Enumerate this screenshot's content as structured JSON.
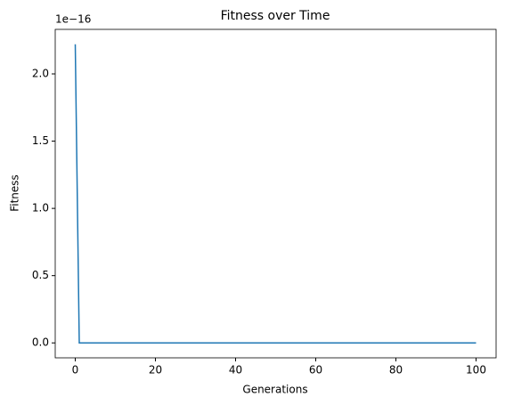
{
  "chart_data": {
    "type": "line",
    "title": "Fitness over Time",
    "xlabel": "Generations",
    "ylabel": "Fitness",
    "y_offset_label": "1e−16",
    "x": [
      0,
      1,
      2,
      3,
      4,
      5,
      6,
      7,
      8,
      9,
      10,
      11,
      12,
      13,
      14,
      15,
      16,
      17,
      18,
      19,
      20,
      21,
      22,
      23,
      24,
      25,
      26,
      27,
      28,
      29,
      30,
      31,
      32,
      33,
      34,
      35,
      36,
      37,
      38,
      39,
      40,
      41,
      42,
      43,
      44,
      45,
      46,
      47,
      48,
      49,
      50,
      51,
      52,
      53,
      54,
      55,
      56,
      57,
      58,
      59,
      60,
      61,
      62,
      63,
      64,
      65,
      66,
      67,
      68,
      69,
      70,
      71,
      72,
      73,
      74,
      75,
      76,
      77,
      78,
      79,
      80,
      81,
      82,
      83,
      84,
      85,
      86,
      87,
      88,
      89,
      90,
      91,
      92,
      93,
      94,
      95,
      96,
      97,
      98,
      99,
      100
    ],
    "values": [
      2.22,
      0,
      0,
      0,
      0,
      0,
      0,
      0,
      0,
      0,
      0,
      0,
      0,
      0,
      0,
      0,
      0,
      0,
      0,
      0,
      0,
      0,
      0,
      0,
      0,
      0,
      0,
      0,
      0,
      0,
      0,
      0,
      0,
      0,
      0,
      0,
      0,
      0,
      0,
      0,
      0,
      0,
      0,
      0,
      0,
      0,
      0,
      0,
      0,
      0,
      0,
      0,
      0,
      0,
      0,
      0,
      0,
      0,
      0,
      0,
      0,
      0,
      0,
      0,
      0,
      0,
      0,
      0,
      0,
      0,
      0,
      0,
      0,
      0,
      0,
      0,
      0,
      0,
      0,
      0,
      0,
      0,
      0,
      0,
      0,
      0,
      0,
      0,
      0,
      0,
      0,
      0,
      0,
      0,
      0,
      0,
      0,
      0,
      0,
      0,
      0
    ],
    "color": "#1f77b4",
    "xlim": [
      -5,
      105
    ],
    "xticks": [
      0,
      20,
      40,
      60,
      80,
      100
    ],
    "ylim": [
      -0.111,
      2.331
    ],
    "yticks": [
      {
        "value": 0,
        "label": "0.0"
      },
      {
        "value": 0.5,
        "label": "0.5"
      },
      {
        "value": 1,
        "label": "1.0"
      },
      {
        "value": 1.5,
        "label": "1.5"
      },
      {
        "value": 2,
        "label": "2.0"
      }
    ]
  }
}
